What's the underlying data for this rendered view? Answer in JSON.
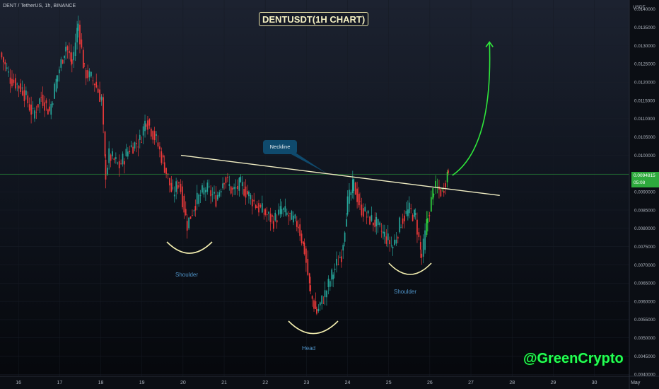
{
  "header": {
    "symbol": "DENT / TetherUS, 1h, BINANCE",
    "currency": "USDT"
  },
  "price_badge": {
    "price": "0.0094815",
    "countdown": "05:08"
  },
  "annotations": {
    "neckline": "Neckline",
    "left_shoulder": "Shoulder",
    "head": "Head",
    "right_shoulder": "Shoulder",
    "watermark": "@GreenCrypto"
  },
  "colors": {
    "bull": "#26a69a",
    "bull_bright": "#2fd63e",
    "bear": "#ef3a3a",
    "neckline": "#f2efc4",
    "arrow": "#2fe83b",
    "arc": "#f4efb0",
    "price_line": "#2eaa3d"
  },
  "chart_data": {
    "type": "candlestick",
    "title": "DENTUSDT(1H CHART)",
    "ylim": [
      0.00395,
      0.01425
    ],
    "xlim": [
      15.55,
      30.85
    ],
    "y_ticks": [
      "0.0140000",
      "0.0135000",
      "0.0130000",
      "0.0125000",
      "0.0120000",
      "0.0115000",
      "0.0110000",
      "0.0105000",
      "0.0100000",
      "0.0095000",
      "0.0090000",
      "0.0085000",
      "0.0080000",
      "0.0075000",
      "0.0070000",
      "0.0065000",
      "0.0060000",
      "0.0055000",
      "0.0050000",
      "0.0045000",
      "0.0040000"
    ],
    "x_ticks": [
      {
        "label": "16",
        "pos": 16
      },
      {
        "label": "17",
        "pos": 17
      },
      {
        "label": "18",
        "pos": 18
      },
      {
        "label": "19",
        "pos": 19
      },
      {
        "label": "20",
        "pos": 20
      },
      {
        "label": "21",
        "pos": 21
      },
      {
        "label": "22",
        "pos": 22
      },
      {
        "label": "23",
        "pos": 23
      },
      {
        "label": "24",
        "pos": 24
      },
      {
        "label": "25",
        "pos": 25
      },
      {
        "label": "26",
        "pos": 26
      },
      {
        "label": "27",
        "pos": 27
      },
      {
        "label": "28",
        "pos": 28
      },
      {
        "label": "29",
        "pos": 29
      },
      {
        "label": "30",
        "pos": 30
      },
      {
        "label": "May",
        "pos": 31
      }
    ],
    "current_price": 0.0094815,
    "price_path": [
      [
        15.55,
        0.0128
      ],
      [
        15.8,
        0.0121
      ],
      [
        16.1,
        0.0118
      ],
      [
        16.35,
        0.0111
      ],
      [
        16.55,
        0.0116
      ],
      [
        16.75,
        0.0112
      ],
      [
        16.95,
        0.0122
      ],
      [
        17.15,
        0.013
      ],
      [
        17.3,
        0.0125
      ],
      [
        17.45,
        0.0136
      ],
      [
        17.6,
        0.0123
      ],
      [
        17.85,
        0.012
      ],
      [
        18.02,
        0.0115
      ],
      [
        18.12,
        0.0095
      ],
      [
        18.2,
        0.01
      ],
      [
        18.45,
        0.0097
      ],
      [
        18.7,
        0.0102
      ],
      [
        18.95,
        0.0104
      ],
      [
        19.1,
        0.011
      ],
      [
        19.35,
        0.0104
      ],
      [
        19.55,
        0.0097
      ],
      [
        19.75,
        0.0089
      ],
      [
        19.9,
        0.0093
      ],
      [
        20.1,
        0.0081
      ],
      [
        20.3,
        0.0087
      ],
      [
        20.55,
        0.0091
      ],
      [
        20.8,
        0.0088
      ],
      [
        21.0,
        0.0094
      ],
      [
        21.2,
        0.009
      ],
      [
        21.4,
        0.0092
      ],
      [
        21.6,
        0.0089
      ],
      [
        21.8,
        0.0086
      ],
      [
        22.0,
        0.0084
      ],
      [
        22.2,
        0.0082
      ],
      [
        22.4,
        0.0085
      ],
      [
        22.6,
        0.0083
      ],
      [
        22.8,
        0.0081
      ],
      [
        22.95,
        0.0074
      ],
      [
        23.1,
        0.0062
      ],
      [
        23.25,
        0.0057
      ],
      [
        23.45,
        0.0062
      ],
      [
        23.65,
        0.0068
      ],
      [
        23.85,
        0.0073
      ],
      [
        24.0,
        0.0087
      ],
      [
        24.15,
        0.0092
      ],
      [
        24.3,
        0.0086
      ],
      [
        24.5,
        0.0083
      ],
      [
        24.7,
        0.0081
      ],
      [
        24.9,
        0.0078
      ],
      [
        25.1,
        0.0075
      ],
      [
        25.3,
        0.0082
      ],
      [
        25.5,
        0.0085
      ],
      [
        25.65,
        0.0083
      ],
      [
        25.8,
        0.0072
      ],
      [
        25.95,
        0.0083
      ],
      [
        26.1,
        0.0091
      ],
      [
        26.3,
        0.009
      ],
      [
        26.45,
        0.0096
      ]
    ],
    "neckline": [
      [
        19.95,
        0.01
      ],
      [
        27.7,
        0.0089
      ]
    ],
    "breakout_arrow": {
      "from": [
        26.55,
        0.00945
      ],
      "to": [
        27.45,
        0.0131
      ]
    }
  }
}
